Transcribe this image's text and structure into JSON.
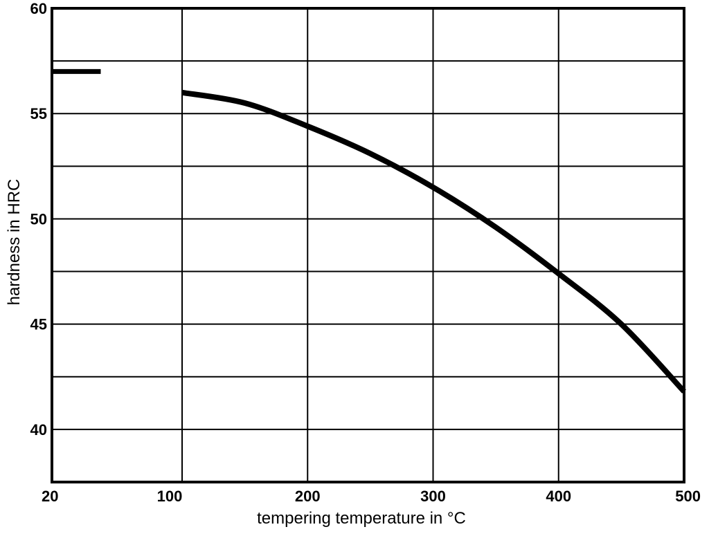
{
  "chart_data": {
    "type": "line",
    "title": "",
    "xlabel": "tempering temperature in °C",
    "ylabel": "hardness in HRC",
    "xlim": [
      20,
      500
    ],
    "ylim": [
      37.5,
      60
    ],
    "x_ticks": [
      20,
      100,
      200,
      300,
      400,
      500
    ],
    "y_ticks": [
      40,
      45,
      50,
      55,
      60
    ],
    "grid": true,
    "y_minor_grid_step": 2.5,
    "line_color": "#000000",
    "series": [
      {
        "x": [
          100,
          150,
          200,
          250,
          300,
          350,
          400,
          450,
          500
        ],
        "y": [
          56.0,
          55.5,
          54.4,
          53.1,
          51.5,
          49.6,
          47.4,
          45.0,
          41.8
        ]
      },
      {
        "x": [
          20,
          50
        ],
        "y": [
          57.0,
          57.0
        ]
      }
    ]
  }
}
